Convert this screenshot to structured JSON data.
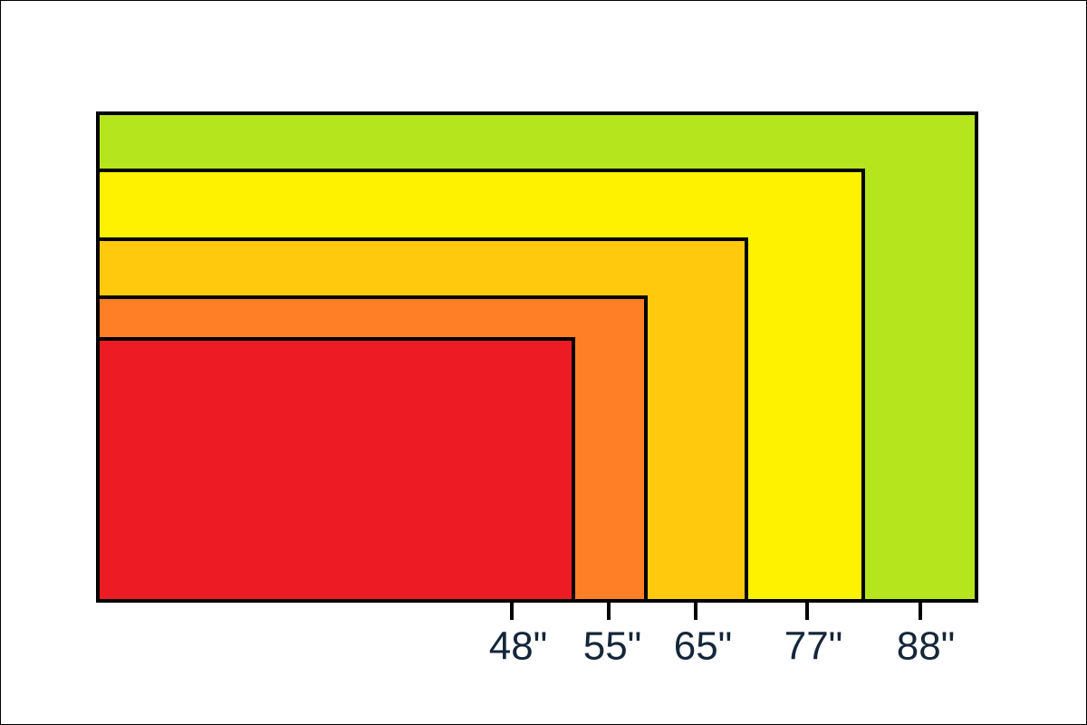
{
  "labels": [
    "48\"",
    "55\"",
    "65\"",
    "77\"",
    "88\""
  ]
}
